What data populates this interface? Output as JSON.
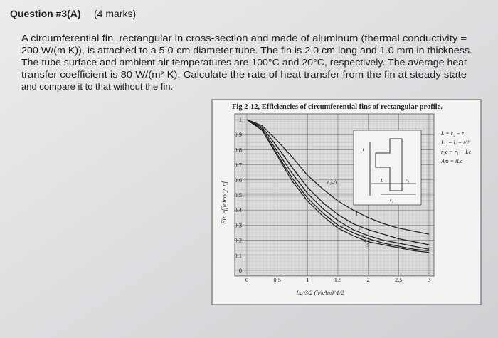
{
  "question": {
    "title": "Question #3(A)",
    "marks": "(4 marks)",
    "lines": [
      "A circumferential fin, rectangular in cross-section and made of aluminum (thermal conductivity =",
      "200 W/(m K)), is attached to a 5.0-cm diameter tube.  The fin is 2.0 cm long and 1.0 mm in thickness.",
      "The tube surface and ambient air temperatures are 100°C and 20°C, respectively.  The average heat",
      "transfer coefficient is 80 W/(m² K). Calculate the rate of heat transfer from the fin at steady state",
      "and compare it to that without the fin."
    ]
  },
  "chart_data": {
    "type": "line",
    "title": "Fig 2-12, Efficiencies of circumferential fins of rectangular profile.",
    "xlabel": "Lc^3/2 (h/kAm)^1/2",
    "ylabel": "Fin efficiency, ηf",
    "annotation": "r₂c/r₁",
    "formulas": [
      "L = r₂ − r₁",
      "Lc = L + t/2",
      "r₂c = r₁ + Lc",
      "Am = tLc"
    ],
    "diagram_labels": [
      "L",
      "r₂",
      "t",
      "r₁"
    ],
    "grid": true,
    "color": "#222222",
    "xlim": [
      0,
      3
    ],
    "ylim": [
      0,
      1
    ],
    "xticks": [
      0,
      0.5,
      1,
      1.5,
      2,
      2.5,
      3
    ],
    "yticks": [
      0,
      0.1,
      0.2,
      0.3,
      0.4,
      0.5,
      0.6,
      0.7,
      0.8,
      0.9,
      1
    ],
    "x": [
      0,
      0.25,
      0.5,
      0.75,
      1,
      1.25,
      1.5,
      1.75,
      2,
      2.25,
      2.5,
      2.75,
      3
    ],
    "series": [
      {
        "name": "1",
        "values": [
          1,
          0.96,
          0.86,
          0.75,
          0.63,
          0.54,
          0.46,
          0.4,
          0.35,
          0.31,
          0.28,
          0.26,
          0.24
        ]
      },
      {
        "name": "2",
        "values": [
          1,
          0.95,
          0.82,
          0.68,
          0.55,
          0.45,
          0.37,
          0.31,
          0.27,
          0.24,
          0.21,
          0.19,
          0.17
        ]
      },
      {
        "name": "3",
        "values": [
          1,
          0.94,
          0.79,
          0.64,
          0.51,
          0.41,
          0.33,
          0.27,
          0.23,
          0.2,
          0.18,
          0.16,
          0.14
        ]
      },
      {
        "name": "4",
        "values": [
          1,
          0.93,
          0.77,
          0.61,
          0.48,
          0.38,
          0.3,
          0.25,
          0.21,
          0.18,
          0.16,
          0.14,
          0.13
        ]
      },
      {
        "name": "5",
        "values": [
          1,
          0.93,
          0.76,
          0.59,
          0.46,
          0.36,
          0.28,
          0.23,
          0.19,
          0.17,
          0.15,
          0.13,
          0.12
        ]
      }
    ]
  }
}
